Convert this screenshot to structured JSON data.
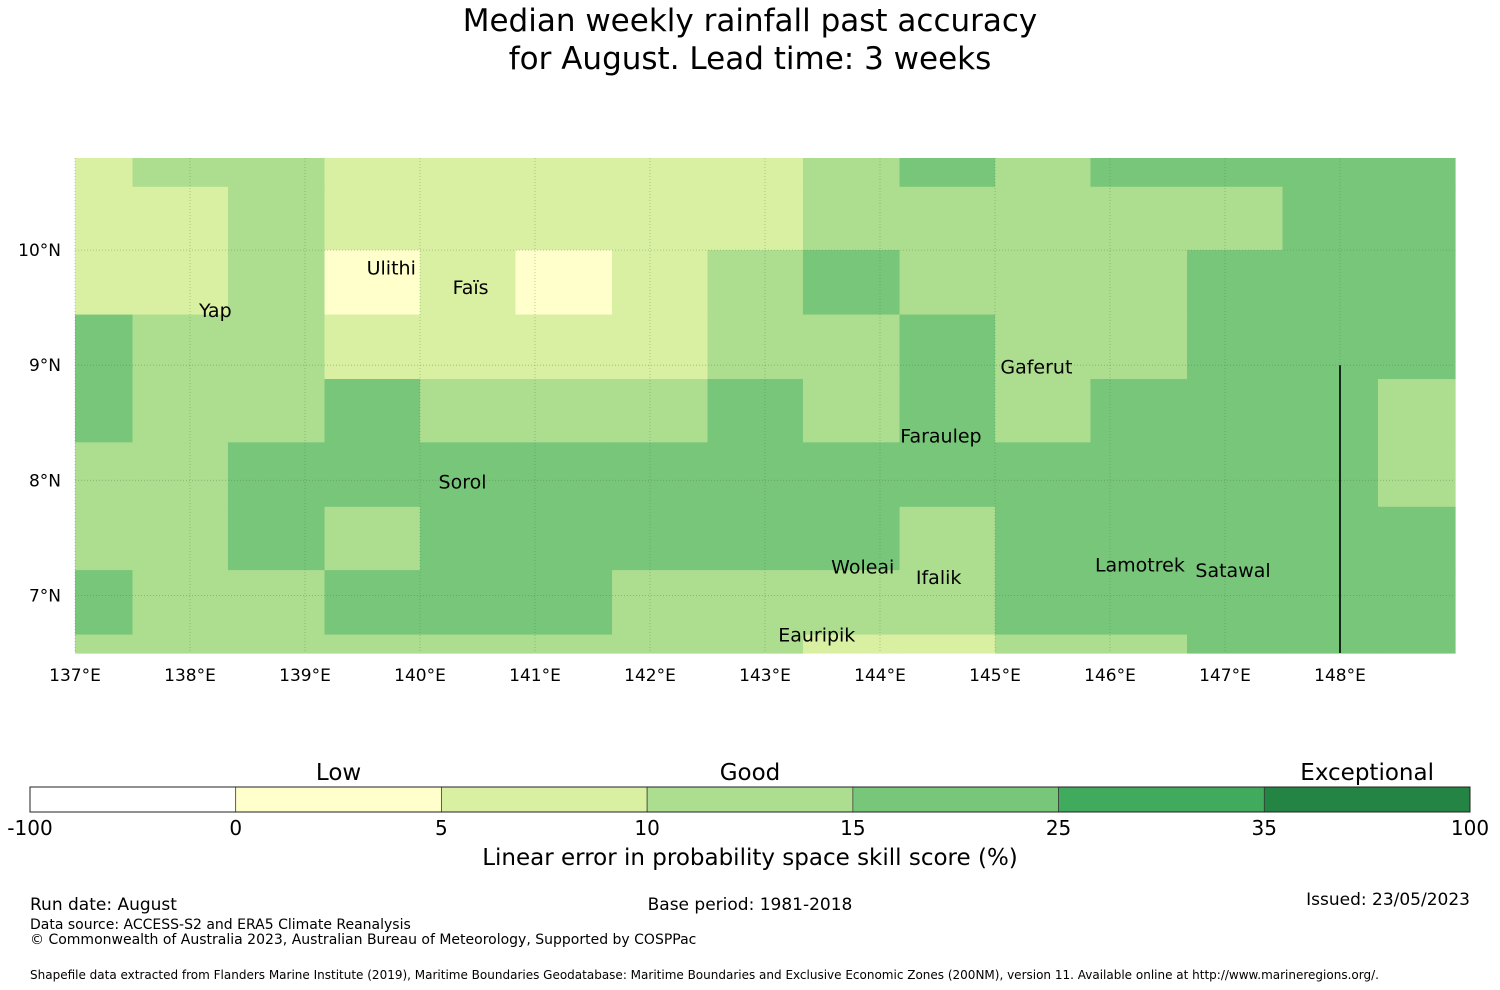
{
  "title_line1": "Median weekly rainfall past accuracy",
  "title_line2": "for August. Lead time: 3 weeks",
  "map": {
    "lon_range": [
      137,
      149
    ],
    "lat_range": [
      6.5,
      10.8
    ],
    "x_ticks": [
      {
        "lon": 137,
        "label": "137°E"
      },
      {
        "lon": 138,
        "label": "138°E"
      },
      {
        "lon": 139,
        "label": "139°E"
      },
      {
        "lon": 140,
        "label": "140°E"
      },
      {
        "lon": 141,
        "label": "141°E"
      },
      {
        "lon": 142,
        "label": "142°E"
      },
      {
        "lon": 143,
        "label": "143°E"
      },
      {
        "lon": 144,
        "label": "144°E"
      },
      {
        "lon": 145,
        "label": "145°E"
      },
      {
        "lon": 146,
        "label": "146°E"
      },
      {
        "lon": 147,
        "label": "147°E"
      },
      {
        "lon": 148,
        "label": "148°E"
      }
    ],
    "y_ticks": [
      {
        "lat": 7,
        "label": "7°N"
      },
      {
        "lat": 8,
        "label": "8°N"
      },
      {
        "lat": 9,
        "label": "9°N"
      },
      {
        "lat": 10,
        "label": "10°N"
      }
    ],
    "col_edges": [
      137,
      137.5,
      138.33,
      139.17,
      140,
      140.83,
      141.67,
      142.5,
      143.33,
      144.17,
      145,
      145.83,
      146.67,
      147.5,
      148.33,
      149
    ],
    "row_edges": [
      10.8,
      10.55,
      10,
      9.44,
      8.88,
      8.33,
      7.77,
      7.22,
      6.66,
      6.5
    ],
    "grid": [
      [
        2,
        3,
        3,
        2,
        2,
        2,
        2,
        2,
        3,
        4,
        3,
        4,
        4,
        4,
        4
      ],
      [
        2,
        2,
        3,
        2,
        2,
        2,
        2,
        2,
        3,
        3,
        3,
        3,
        3,
        4,
        4
      ],
      [
        2,
        2,
        3,
        1,
        2,
        1,
        2,
        3,
        4,
        3,
        3,
        3,
        4,
        4,
        4
      ],
      [
        4,
        3,
        3,
        2,
        2,
        2,
        2,
        3,
        3,
        4,
        3,
        3,
        4,
        4,
        4
      ],
      [
        4,
        3,
        3,
        4,
        3,
        3,
        3,
        4,
        3,
        4,
        3,
        4,
        4,
        4,
        3
      ],
      [
        3,
        3,
        4,
        4,
        4,
        4,
        4,
        4,
        4,
        4,
        4,
        4,
        4,
        4,
        3
      ],
      [
        3,
        3,
        4,
        3,
        4,
        4,
        4,
        4,
        4,
        3,
        4,
        4,
        4,
        4,
        4
      ],
      [
        4,
        3,
        3,
        4,
        4,
        4,
        3,
        3,
        3,
        3,
        4,
        4,
        4,
        4,
        4
      ],
      [
        3,
        3,
        3,
        3,
        3,
        3,
        3,
        3,
        2,
        2,
        3,
        3,
        4,
        4,
        4
      ]
    ],
    "boundary_line": {
      "lon": 148,
      "lat_from": 6.5,
      "lat_to": 9.0
    },
    "places": [
      {
        "name": "Ulithi",
        "lon": 139.75,
        "lat": 9.85
      },
      {
        "name": "Faïs",
        "lon": 140.44,
        "lat": 9.68
      },
      {
        "name": "Yap",
        "lon": 138.22,
        "lat": 9.48
      },
      {
        "name": "Gaferut",
        "lon": 145.36,
        "lat": 8.99
      },
      {
        "name": "Faraulep",
        "lon": 144.53,
        "lat": 8.39
      },
      {
        "name": "Sorol",
        "lon": 140.37,
        "lat": 7.99
      },
      {
        "name": "Woleai",
        "lon": 143.85,
        "lat": 7.25
      },
      {
        "name": "Ifalik",
        "lon": 144.51,
        "lat": 7.16
      },
      {
        "name": "Lamotrek",
        "lon": 146.26,
        "lat": 7.27
      },
      {
        "name": "Satawal",
        "lon": 147.07,
        "lat": 7.22
      },
      {
        "name": "Eauripik",
        "lon": 143.45,
        "lat": 6.66
      }
    ]
  },
  "colorbar": {
    "boundaries": [
      "-100",
      "0",
      "5",
      "10",
      "15",
      "25",
      "35",
      "100"
    ],
    "colors": [
      "#ffffff",
      "#ffffcc",
      "#d9f0a3",
      "#addd8e",
      "#78c679",
      "#41ab5d",
      "#238443"
    ],
    "categories": [
      {
        "label": "Low",
        "bin": 1
      },
      {
        "label": "Good",
        "bin": 3
      },
      {
        "label": "Exceptional",
        "bin": 6
      }
    ],
    "title": "Linear error in probability space skill score (%)"
  },
  "footer": {
    "run_date": "Run date: August",
    "base_period": "Base period: 1981-2018",
    "issued": "Issued: 23/05/2023",
    "data_source": "Data source: ACCESS-S2 and ERA5 Climate Reanalysis",
    "copyright": "© Commonwealth of Australia 2023, Australian Bureau of Meteorology, Supported by COSPPac",
    "shapefile": "Shapefile data extracted from Flanders Marine Institute (2019), Maritime Boundaries Geodatabase: Maritime Boundaries and Exclusive Economic Zones (200NM), version 11. Available online at http://www.marineregions.org/."
  }
}
